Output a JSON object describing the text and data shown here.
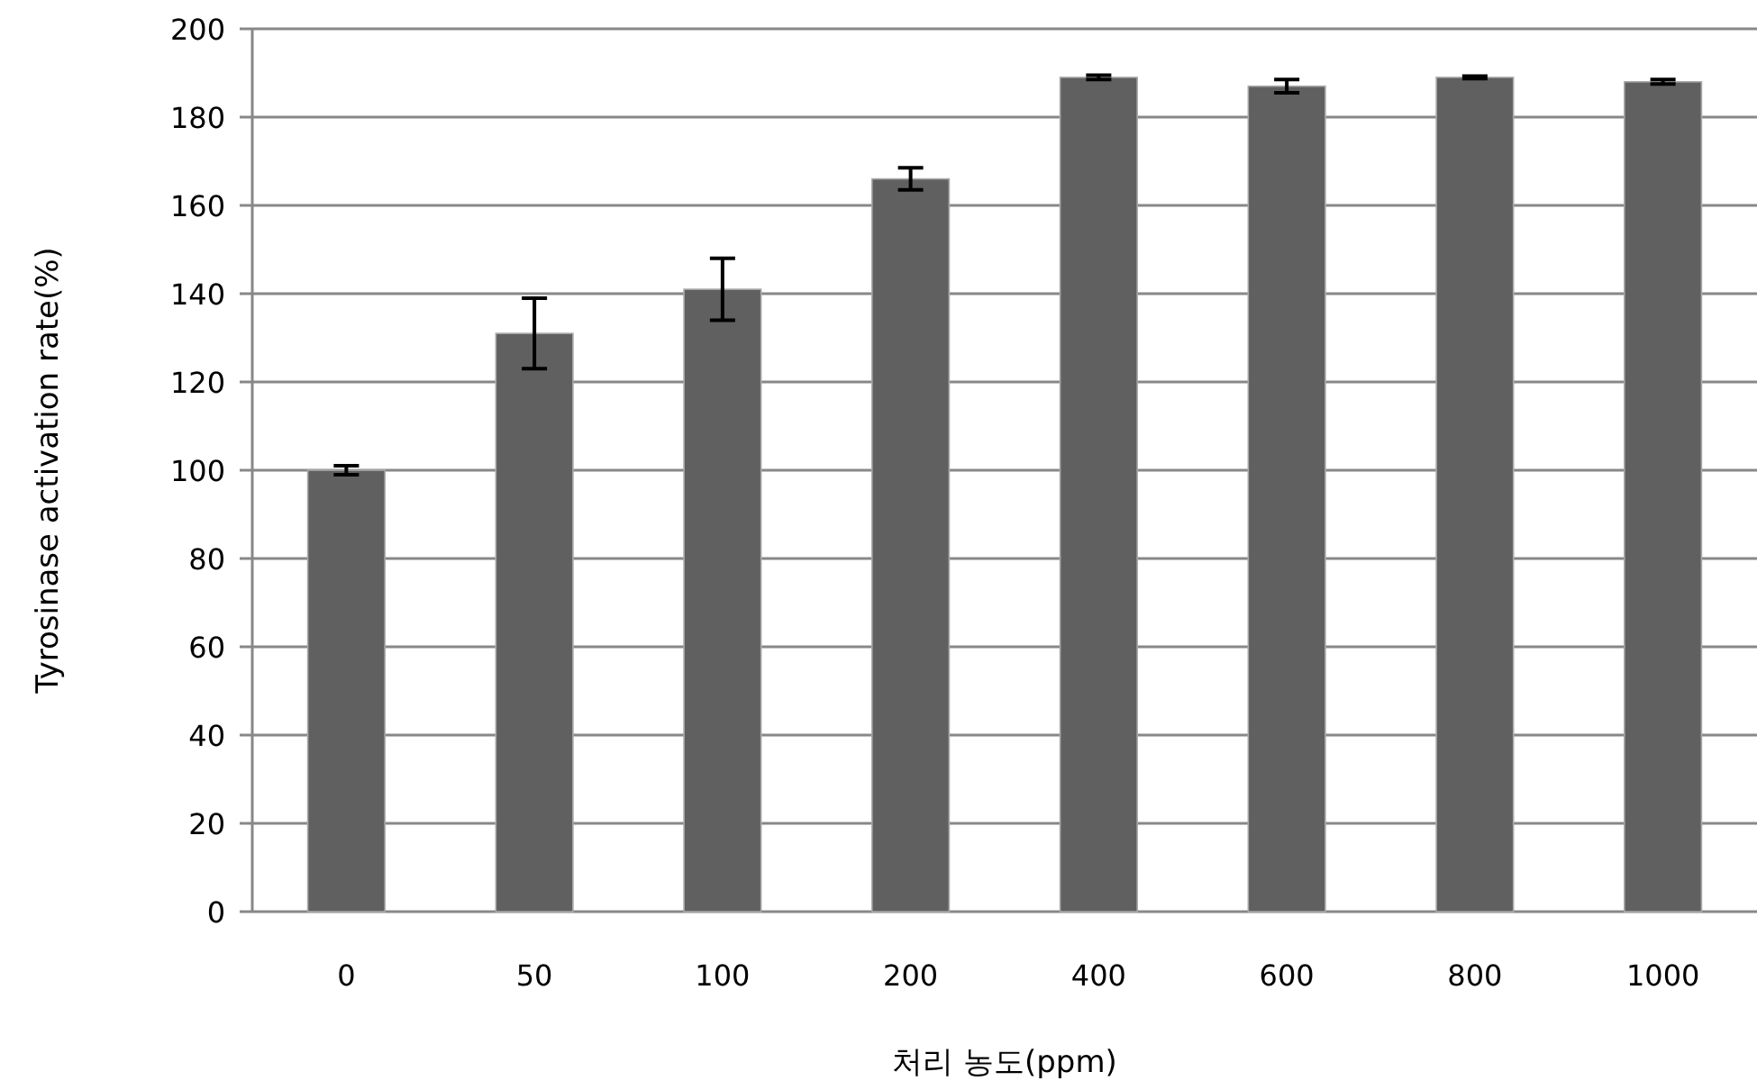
{
  "chart_data": {
    "type": "bar",
    "xlabel": "처리 농도(ppm)",
    "ylabel": "Tyrosinase activation rate(%)",
    "categories": [
      "0",
      "50",
      "100",
      "200",
      "400",
      "600",
      "800",
      "1000"
    ],
    "values": [
      100,
      131,
      141,
      166,
      189,
      187,
      189,
      188
    ],
    "errors": [
      1,
      8,
      7,
      2.5,
      0.5,
      1.5,
      0.3,
      0.5
    ],
    "color": "#606060",
    "ylim": [
      0,
      200
    ],
    "yticks": [
      0,
      20,
      40,
      60,
      80,
      100,
      120,
      140,
      160,
      180,
      200
    ],
    "grid": "y"
  }
}
